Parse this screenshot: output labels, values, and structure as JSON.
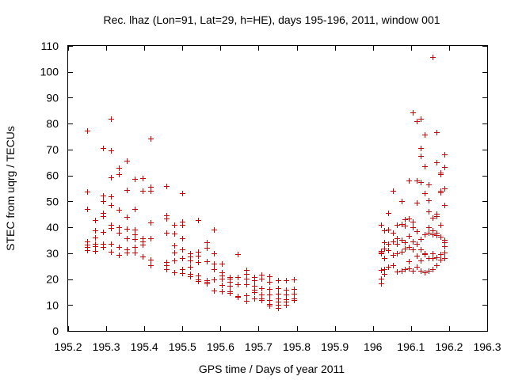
{
  "chart_data": {
    "type": "scatter",
    "title": "Rec. lhaz (Lon=91, Lat=29, h=HE), days 195-196, 2011, window 001",
    "xlabel": "GPS time / Days of year 2011",
    "ylabel": "STEC from uqrg / TECUs",
    "xlim": [
      195.2,
      196.3
    ],
    "ylim": [
      0,
      110
    ],
    "xticks": [
      195.2,
      195.3,
      195.4,
      195.5,
      195.6,
      195.7,
      195.8,
      195.9,
      196.0,
      196.1,
      196.2,
      196.3
    ],
    "xtick_labels": [
      "195.2",
      "195.3",
      "195.4",
      "195.5",
      "195.6",
      "195.7",
      "195.8",
      "195.9",
      "196",
      "196.1",
      "196.2",
      "196.3"
    ],
    "yticks": [
      0,
      10,
      20,
      30,
      40,
      50,
      60,
      70,
      80,
      90,
      100,
      110
    ],
    "ytick_labels": [
      "0",
      "10",
      "20",
      "30",
      "40",
      "50",
      "60",
      "70",
      "80",
      "90",
      "100",
      "110"
    ],
    "marker": "+",
    "color": "#cc0000",
    "points": [
      [
        195.25,
        77.2
      ],
      [
        195.25,
        53.8
      ],
      [
        195.25,
        47.0
      ],
      [
        195.25,
        34.5
      ],
      [
        195.25,
        33.2
      ],
      [
        195.25,
        32.3
      ],
      [
        195.25,
        31.2
      ],
      [
        195.271,
        42.7
      ],
      [
        195.271,
        38.7
      ],
      [
        195.271,
        36.2
      ],
      [
        195.271,
        33.6
      ],
      [
        195.271,
        32.6
      ],
      [
        195.271,
        31.0
      ],
      [
        195.292,
        70.7
      ],
      [
        195.292,
        52.1
      ],
      [
        195.292,
        50.2
      ],
      [
        195.292,
        45.4
      ],
      [
        195.292,
        44.3
      ],
      [
        195.292,
        38.2
      ],
      [
        195.292,
        33.7
      ],
      [
        195.292,
        32.3
      ],
      [
        195.313,
        81.8
      ],
      [
        195.313,
        69.7
      ],
      [
        195.313,
        59.4
      ],
      [
        195.313,
        51.8
      ],
      [
        195.313,
        48.5
      ],
      [
        195.313,
        40.9
      ],
      [
        195.313,
        39.8
      ],
      [
        195.313,
        33.6
      ],
      [
        195.313,
        30.7
      ],
      [
        195.333,
        62.9
      ],
      [
        195.333,
        60.5
      ],
      [
        195.333,
        46.9
      ],
      [
        195.333,
        40.1
      ],
      [
        195.333,
        37.8
      ],
      [
        195.333,
        32.4
      ],
      [
        195.333,
        29.3
      ],
      [
        195.354,
        65.8
      ],
      [
        195.354,
        54.4
      ],
      [
        195.354,
        44.0
      ],
      [
        195.354,
        39.5
      ],
      [
        195.354,
        35.8
      ],
      [
        195.354,
        31.4
      ],
      [
        195.354,
        30.1
      ],
      [
        195.375,
        58.6
      ],
      [
        195.375,
        47.2
      ],
      [
        195.375,
        39.1
      ],
      [
        195.375,
        37.4
      ],
      [
        195.375,
        35.3
      ],
      [
        195.375,
        32.3
      ],
      [
        195.375,
        30.3
      ],
      [
        195.396,
        59.1
      ],
      [
        195.396,
        54.1
      ],
      [
        195.396,
        35.6
      ],
      [
        195.396,
        34.5
      ],
      [
        195.396,
        33.3
      ],
      [
        195.396,
        28.6
      ],
      [
        195.417,
        74.2
      ],
      [
        195.417,
        55.5
      ],
      [
        195.417,
        54.1
      ],
      [
        195.417,
        42.0
      ],
      [
        195.417,
        35.7
      ],
      [
        195.417,
        27.6
      ],
      [
        195.417,
        25.5
      ],
      [
        195.458,
        56.0
      ],
      [
        195.458,
        44.7
      ],
      [
        195.458,
        43.4
      ],
      [
        195.458,
        37.9
      ],
      [
        195.458,
        26.6
      ],
      [
        195.458,
        25.4
      ],
      [
        195.458,
        23.9
      ],
      [
        195.479,
        41.0
      ],
      [
        195.479,
        37.5
      ],
      [
        195.479,
        33.1
      ],
      [
        195.479,
        30.1
      ],
      [
        195.479,
        27.3
      ],
      [
        195.479,
        22.6
      ],
      [
        195.5,
        53.3
      ],
      [
        195.5,
        42.2
      ],
      [
        195.5,
        41.0
      ],
      [
        195.5,
        35.6
      ],
      [
        195.5,
        31.4
      ],
      [
        195.5,
        28.2
      ],
      [
        195.5,
        23.7
      ],
      [
        195.5,
        22.4
      ],
      [
        195.521,
        29.8
      ],
      [
        195.521,
        28.6
      ],
      [
        195.521,
        27.3
      ],
      [
        195.521,
        24.6
      ],
      [
        195.521,
        22.1
      ],
      [
        195.521,
        21.1
      ],
      [
        195.542,
        42.7
      ],
      [
        195.542,
        30.6
      ],
      [
        195.542,
        29.0
      ],
      [
        195.542,
        26.5
      ],
      [
        195.542,
        21.3
      ],
      [
        195.542,
        20.0
      ],
      [
        195.542,
        19.1
      ],
      [
        195.563,
        34.1
      ],
      [
        195.563,
        32.2
      ],
      [
        195.563,
        27.0
      ],
      [
        195.563,
        19.6
      ],
      [
        195.563,
        18.8
      ],
      [
        195.563,
        18.2
      ],
      [
        195.583,
        39.1
      ],
      [
        195.583,
        30.0
      ],
      [
        195.583,
        26.1
      ],
      [
        195.583,
        23.9
      ],
      [
        195.583,
        19.8
      ],
      [
        195.583,
        15.5
      ],
      [
        195.604,
        26.1
      ],
      [
        195.604,
        22.7
      ],
      [
        195.604,
        21.5
      ],
      [
        195.604,
        20.2
      ],
      [
        195.604,
        17.6
      ],
      [
        195.604,
        15.3
      ],
      [
        195.625,
        20.9
      ],
      [
        195.625,
        20.1
      ],
      [
        195.625,
        18.9
      ],
      [
        195.625,
        17.4
      ],
      [
        195.625,
        15.3
      ],
      [
        195.625,
        14.7
      ],
      [
        195.646,
        29.7
      ],
      [
        195.646,
        20.8
      ],
      [
        195.646,
        17.9
      ],
      [
        195.646,
        13.4
      ],
      [
        195.646,
        13.0
      ],
      [
        195.667,
        23.6
      ],
      [
        195.667,
        21.9
      ],
      [
        195.667,
        20.1
      ],
      [
        195.667,
        17.9
      ],
      [
        195.667,
        13.7
      ],
      [
        195.667,
        11.7
      ],
      [
        195.688,
        20.8
      ],
      [
        195.688,
        19.6
      ],
      [
        195.688,
        17.5
      ],
      [
        195.688,
        16.0
      ],
      [
        195.688,
        14.9
      ],
      [
        195.688,
        12.6
      ],
      [
        195.708,
        21.6
      ],
      [
        195.708,
        20.2
      ],
      [
        195.708,
        16.6
      ],
      [
        195.708,
        14.0
      ],
      [
        195.708,
        12.6
      ],
      [
        195.708,
        11.9
      ],
      [
        195.729,
        21.2
      ],
      [
        195.729,
        18.9
      ],
      [
        195.729,
        16.2
      ],
      [
        195.729,
        14.2
      ],
      [
        195.729,
        11.9
      ],
      [
        195.729,
        10.4
      ],
      [
        195.729,
        9.9
      ],
      [
        195.75,
        19.6
      ],
      [
        195.75,
        16.4
      ],
      [
        195.75,
        14.3
      ],
      [
        195.75,
        12.4
      ],
      [
        195.75,
        11.2
      ],
      [
        195.75,
        10.1
      ],
      [
        195.75,
        8.8
      ],
      [
        195.771,
        19.7
      ],
      [
        195.771,
        15.8
      ],
      [
        195.771,
        14.1
      ],
      [
        195.771,
        12.1
      ],
      [
        195.771,
        11.2
      ],
      [
        195.771,
        10.0
      ],
      [
        195.792,
        19.9
      ],
      [
        195.792,
        16.2
      ],
      [
        195.792,
        14.3
      ],
      [
        195.792,
        12.6
      ],
      [
        195.792,
        11.8
      ],
      [
        196.021,
        40.8
      ],
      [
        196.021,
        31.0
      ],
      [
        196.021,
        30.4
      ],
      [
        196.021,
        29.8
      ],
      [
        196.021,
        23.4
      ],
      [
        196.021,
        20.3
      ],
      [
        196.021,
        18.3
      ],
      [
        196.029,
        38.7
      ],
      [
        196.029,
        34.1
      ],
      [
        196.029,
        31.8
      ],
      [
        196.029,
        28.1
      ],
      [
        196.029,
        23.8
      ],
      [
        196.029,
        21.9
      ],
      [
        196.04,
        45.5
      ],
      [
        196.04,
        39.0
      ],
      [
        196.04,
        33.5
      ],
      [
        196.04,
        31.3
      ],
      [
        196.04,
        24.7
      ],
      [
        196.052,
        54.2
      ],
      [
        196.052,
        37.8
      ],
      [
        196.052,
        34.4
      ],
      [
        196.052,
        29.3
      ],
      [
        196.052,
        25.3
      ],
      [
        196.063,
        40.8
      ],
      [
        196.063,
        35.9
      ],
      [
        196.063,
        33.7
      ],
      [
        196.063,
        29.8
      ],
      [
        196.063,
        22.9
      ],
      [
        196.075,
        50.0
      ],
      [
        196.075,
        41.2
      ],
      [
        196.075,
        35.0
      ],
      [
        196.075,
        30.7
      ],
      [
        196.075,
        23.3
      ],
      [
        196.083,
        43.0
      ],
      [
        196.083,
        40.5
      ],
      [
        196.083,
        34.2
      ],
      [
        196.083,
        31.8
      ],
      [
        196.083,
        23.8
      ],
      [
        196.094,
        58.0
      ],
      [
        196.094,
        43.4
      ],
      [
        196.094,
        36.6
      ],
      [
        196.094,
        32.3
      ],
      [
        196.094,
        27.0
      ],
      [
        196.094,
        24.0
      ],
      [
        196.104,
        84.2
      ],
      [
        196.104,
        42.3
      ],
      [
        196.104,
        40.1
      ],
      [
        196.104,
        34.6
      ],
      [
        196.104,
        31.6
      ],
      [
        196.104,
        23.2
      ],
      [
        196.115,
        81.0
      ],
      [
        196.115,
        58.1
      ],
      [
        196.115,
        49.4
      ],
      [
        196.115,
        38.4
      ],
      [
        196.115,
        33.6
      ],
      [
        196.115,
        29.1
      ],
      [
        196.115,
        24.8
      ],
      [
        196.125,
        82.0
      ],
      [
        196.125,
        70.6
      ],
      [
        196.125,
        67.4
      ],
      [
        196.125,
        57.5
      ],
      [
        196.125,
        35.5
      ],
      [
        196.125,
        31.4
      ],
      [
        196.125,
        27.3
      ],
      [
        196.125,
        23.2
      ],
      [
        196.135,
        75.8
      ],
      [
        196.135,
        63.5
      ],
      [
        196.135,
        53.2
      ],
      [
        196.135,
        37.3
      ],
      [
        196.135,
        30.0
      ],
      [
        196.135,
        29.5
      ],
      [
        196.135,
        22.6
      ],
      [
        196.146,
        56.6
      ],
      [
        196.146,
        50.4
      ],
      [
        196.146,
        46.2
      ],
      [
        196.146,
        39.9
      ],
      [
        196.146,
        37.9
      ],
      [
        196.146,
        28.1
      ],
      [
        196.146,
        23.1
      ],
      [
        196.156,
        105.8
      ],
      [
        196.156,
        43.7
      ],
      [
        196.156,
        38.8
      ],
      [
        196.156,
        37.2
      ],
      [
        196.156,
        30.0
      ],
      [
        196.156,
        28.0
      ],
      [
        196.156,
        23.9
      ],
      [
        196.167,
        76.8
      ],
      [
        196.167,
        65.0
      ],
      [
        196.167,
        45.2
      ],
      [
        196.167,
        44.3
      ],
      [
        196.167,
        38.0
      ],
      [
        196.167,
        36.9
      ],
      [
        196.167,
        28.5
      ],
      [
        196.167,
        25.4
      ],
      [
        196.177,
        61.1
      ],
      [
        196.177,
        60.5
      ],
      [
        196.177,
        54.1
      ],
      [
        196.177,
        53.5
      ],
      [
        196.177,
        40.8
      ],
      [
        196.177,
        36.5
      ],
      [
        196.177,
        29.6
      ],
      [
        196.177,
        27.4
      ],
      [
        196.188,
        68.0
      ],
      [
        196.188,
        63.2
      ],
      [
        196.188,
        54.9
      ],
      [
        196.188,
        48.6
      ],
      [
        196.188,
        35.0
      ],
      [
        196.188,
        34.3
      ],
      [
        196.188,
        32.8
      ],
      [
        196.188,
        30.4
      ],
      [
        196.188,
        28.1
      ]
    ]
  }
}
